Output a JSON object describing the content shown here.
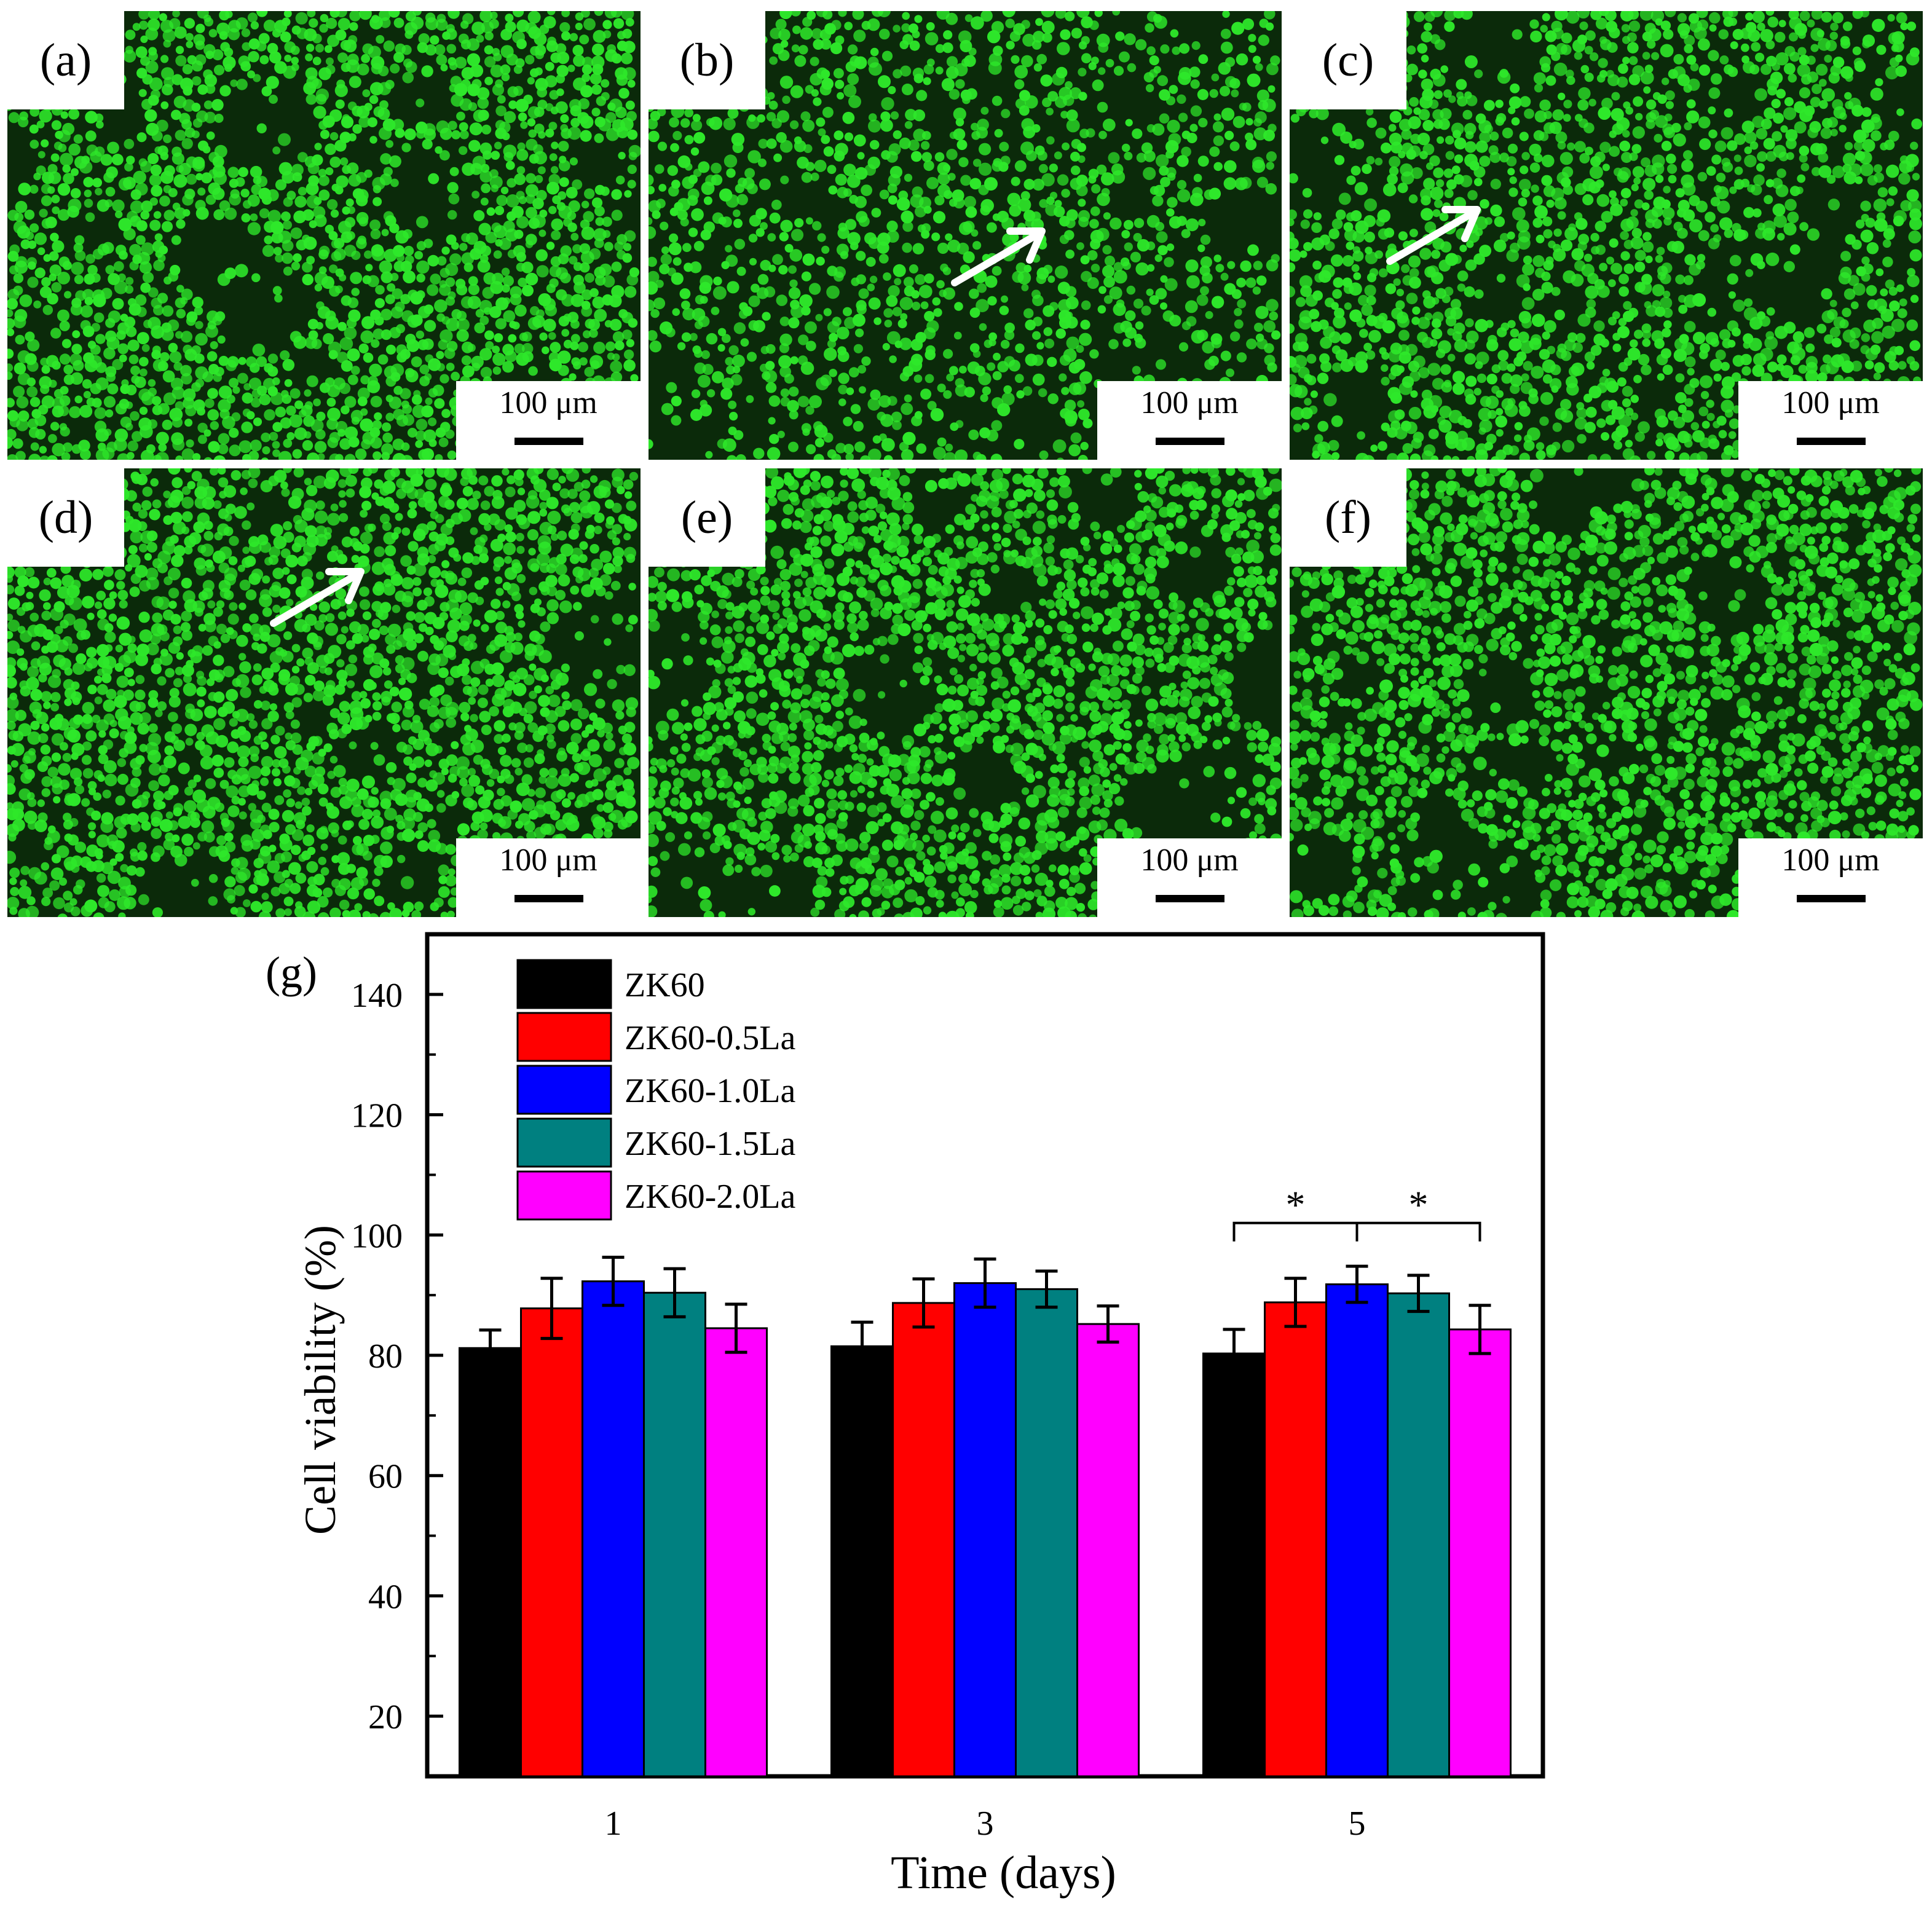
{
  "panels": [
    {
      "label": "(a)",
      "scale": "100 μm",
      "arrow": false
    },
    {
      "label": "(b)",
      "scale": "100 μm",
      "arrow": true
    },
    {
      "label": "(c)",
      "scale": "100 μm",
      "arrow": true
    },
    {
      "label": "(d)",
      "scale": "100 μm",
      "arrow": true
    },
    {
      "label": "(e)",
      "scale": "100 μm",
      "arrow": false
    },
    {
      "label": "(f)",
      "scale": "100 μm",
      "arrow": false
    }
  ],
  "colors": {
    "cell_green": "#2ee82a",
    "cell_bg": "#0b2a0a",
    "arrow": "#ffffff"
  },
  "chart_data": {
    "type": "bar",
    "panel_label": "(g)",
    "xlabel": "Time (days)",
    "ylabel": "Cell viability (%)",
    "categories": [
      "1",
      "3",
      "5"
    ],
    "ylim": [
      10,
      150
    ],
    "yticks": [
      20,
      40,
      60,
      80,
      100,
      120,
      140
    ],
    "legend_position": "top-left",
    "series": [
      {
        "name": "ZK60",
        "color": "#000000",
        "values": [
          81.2,
          81.5,
          80.3
        ],
        "errors": [
          3.0,
          4.0,
          4.0
        ]
      },
      {
        "name": "ZK60-0.5La",
        "color": "#ff0000",
        "values": [
          87.8,
          88.7,
          88.8
        ],
        "errors": [
          5.0,
          4.0,
          4.0
        ]
      },
      {
        "name": "ZK60-1.0La",
        "color": "#0000ff",
        "values": [
          92.3,
          92.0,
          91.8
        ],
        "errors": [
          4.0,
          4.0,
          3.0
        ]
      },
      {
        "name": "ZK60-1.5La",
        "color": "#008080",
        "values": [
          90.4,
          91.0,
          90.3
        ],
        "errors": [
          4.0,
          3.0,
          3.0
        ]
      },
      {
        "name": "ZK60-2.0La",
        "color": "#ff00ff",
        "values": [
          84.5,
          85.2,
          84.3
        ],
        "errors": [
          4.0,
          3.0,
          4.0
        ]
      }
    ],
    "significance": {
      "category": "5",
      "marker": "*",
      "left_from": "ZK60",
      "center": "ZK60-1.0La",
      "right_to": "ZK60-2.0La",
      "level": 102
    }
  }
}
